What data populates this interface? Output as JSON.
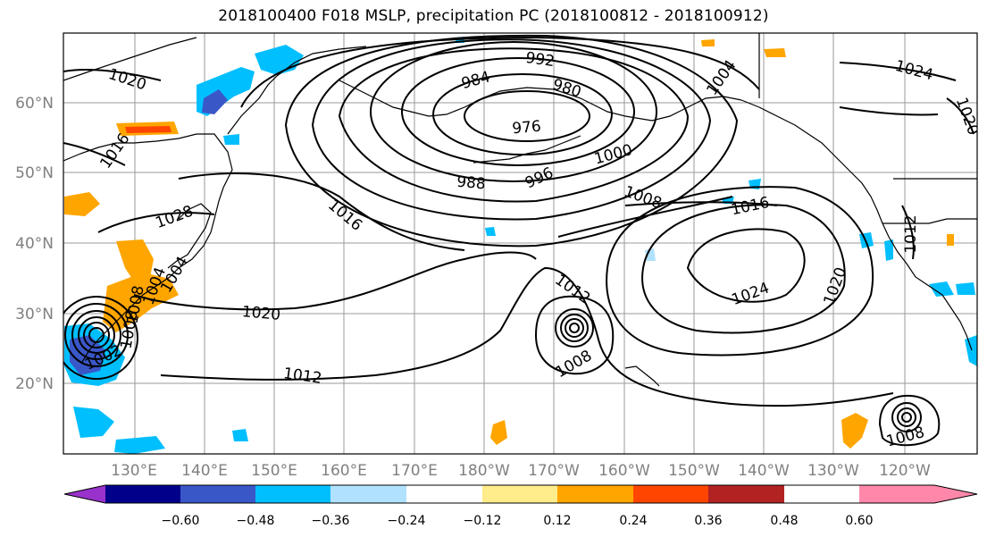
{
  "title": "2018100400 F018 MSLP, precipitation PC (2018100812 - 2018100912)",
  "lat_labels": [
    "60°N",
    "50°N",
    "40°N",
    "30°N",
    "20°N"
  ],
  "lon_labels": [
    "130°E",
    "140°E",
    "150°E",
    "160°E",
    "170°E",
    "180°W",
    "170°W",
    "160°W",
    "150°W",
    "140°W",
    "130°W",
    "120°W"
  ],
  "isobar_labels": [
    "992",
    "984",
    "980",
    "976",
    "988",
    "996",
    "1000",
    "1004",
    "1008",
    "1016",
    "1020",
    "1024",
    "1028",
    "1012",
    "1012",
    "1016",
    "1020",
    "1024",
    "1020",
    "1008",
    "1008",
    "1012",
    "1016",
    "1004",
    "1008",
    "1002",
    "1008",
    "1004",
    "1020",
    "1016",
    "1024"
  ],
  "colorbar": {
    "colors": [
      "#9932CC",
      "#00008B",
      "#3A57C8",
      "#00BFFF",
      "#B0E2FF",
      "#FFFFFF",
      "#FFEC8B",
      "#FFA500",
      "#FF4500",
      "#B22222",
      "#FF88AA"
    ],
    "tick_labels": [
      "−0.60",
      "−0.48",
      "−0.36",
      "−0.24",
      "−0.12",
      "0.12",
      "0.24",
      "0.36",
      "0.48",
      "0.60"
    ]
  }
}
